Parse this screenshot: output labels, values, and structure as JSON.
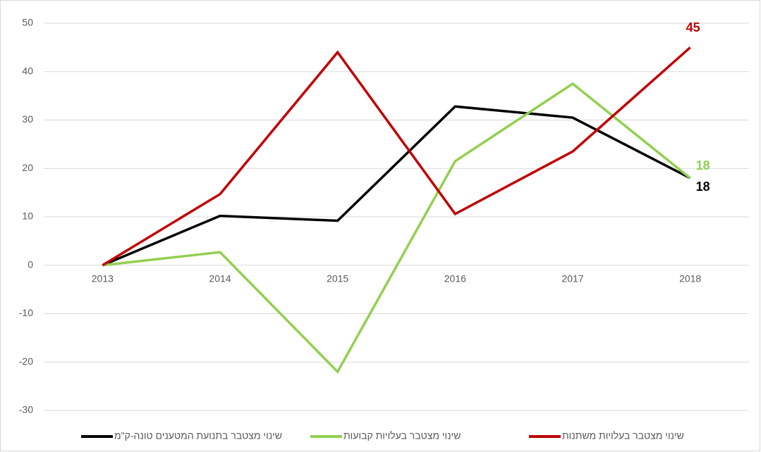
{
  "chart_data": {
    "type": "line",
    "categories": [
      "2013",
      "2014",
      "2015",
      "2016",
      "2017",
      "2018"
    ],
    "series": [
      {
        "name": "שינוי מצטבר בתנועת המטענים טונה-ק\"מ",
        "color": "#000000",
        "values": [
          0,
          10.2,
          9.2,
          32.8,
          30.5,
          18
        ]
      },
      {
        "name": "שינוי מצטבר בעלויות קבועות",
        "color": "#92d050",
        "values": [
          0,
          2.7,
          -22,
          21.5,
          37.5,
          18
        ]
      },
      {
        "name": "שינוי מצטבר בעלויות משתנות",
        "color": "#c00000",
        "values": [
          0,
          14.7,
          44,
          10.6,
          23.5,
          45
        ]
      }
    ],
    "ylim": [
      -30,
      50
    ],
    "yticks": [
      -30,
      -20,
      -10,
      0,
      10,
      20,
      30,
      40,
      50
    ],
    "grid": true,
    "data_labels": "last",
    "legend": "bottom"
  }
}
